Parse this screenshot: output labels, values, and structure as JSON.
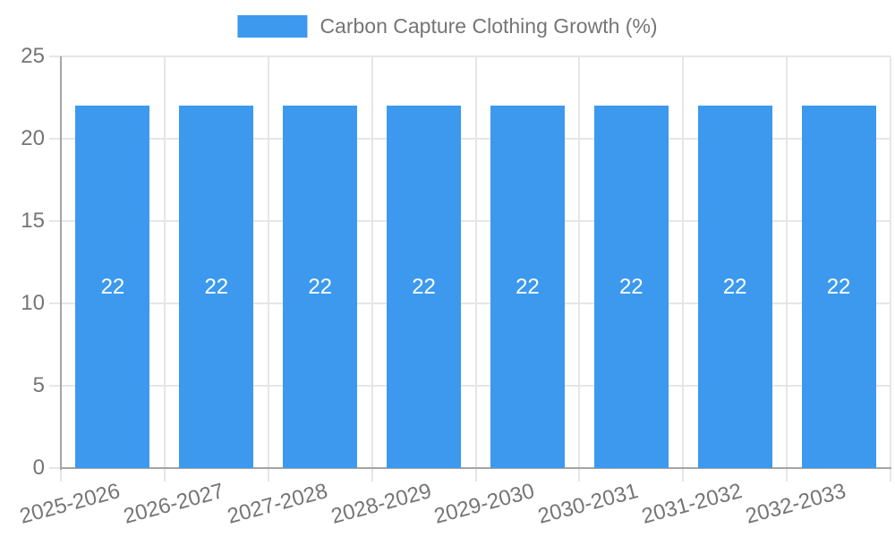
{
  "chart_data": {
    "type": "bar",
    "title": "Carbon Capture Clothing Growth (%)",
    "legend": {
      "label": "Carbon Capture Clothing Growth (%)",
      "position": "top"
    },
    "categories": [
      "2025-2026",
      "2026-2027",
      "2027-2028",
      "2028-2029",
      "2029-2030",
      "2030-2031",
      "2031-2032",
      "2032-2033"
    ],
    "series": [
      {
        "name": "Carbon Capture Clothing Growth (%)",
        "values": [
          22,
          22,
          22,
          22,
          22,
          22,
          22,
          22
        ]
      }
    ],
    "bar_labels": [
      "22",
      "22",
      "22",
      "22",
      "22",
      "22",
      "22",
      "22"
    ],
    "xlabel": "",
    "ylabel": "",
    "ylim": [
      0,
      25
    ],
    "yticks": [
      0,
      5,
      10,
      15,
      20,
      25
    ],
    "grid": true,
    "colors": {
      "bar": "#3C99EE",
      "bar_label": "#FFFFFF",
      "text": "#757575",
      "gridline": "#E6E6E6",
      "axis": "#A5A5A5",
      "background": "#FFFFFF"
    }
  }
}
